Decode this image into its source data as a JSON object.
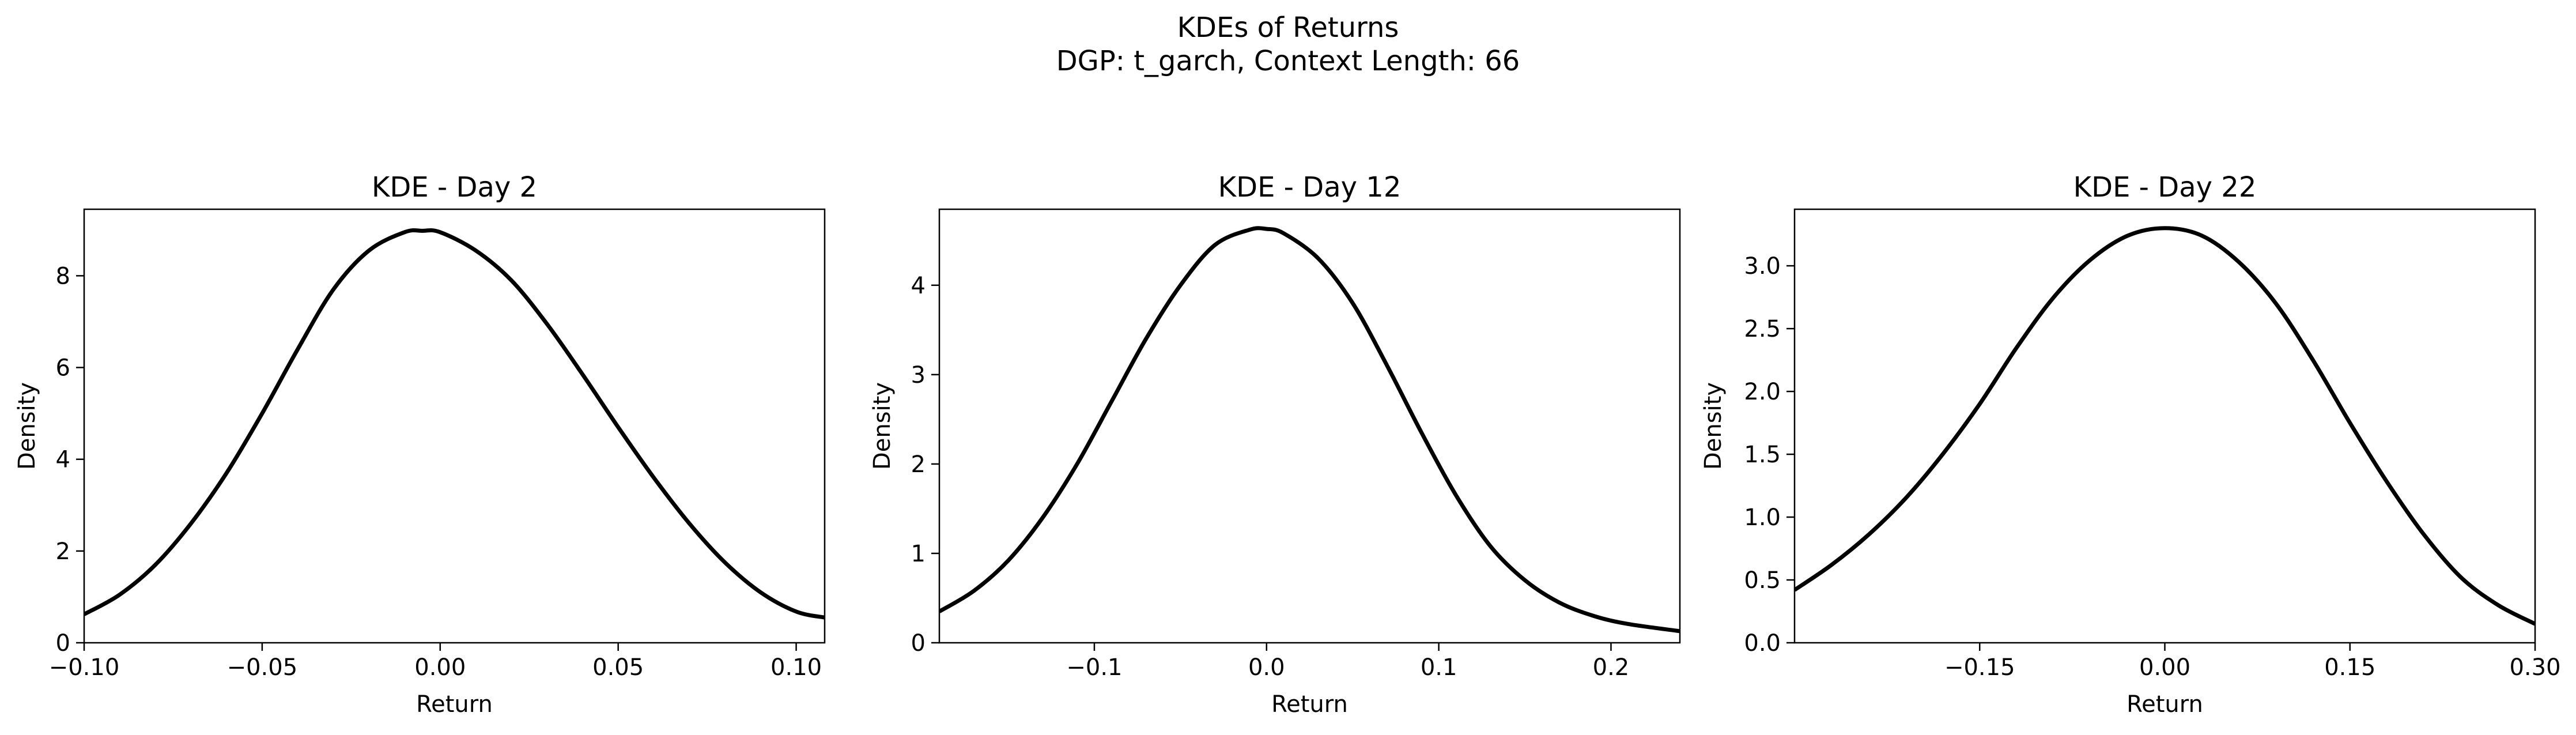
{
  "figure": {
    "title_line1": "KDEs of Returns",
    "title_line2": "DGP: t_garch, Context Length: 66"
  },
  "chart_data": [
    {
      "type": "line",
      "title": "KDE - Day 2",
      "xlabel": "Return",
      "ylabel": "Density",
      "xlim": [
        -0.1,
        0.108
      ],
      "ylim": [
        0,
        9.45
      ],
      "xticks": [
        -0.1,
        -0.05,
        0.0,
        0.05,
        0.1
      ],
      "xtick_labels": [
        "−0.10",
        "−0.05",
        "0.00",
        "0.05",
        "0.10"
      ],
      "yticks": [
        0,
        2,
        4,
        6,
        8
      ],
      "ytick_labels": [
        "0",
        "2",
        "4",
        "6",
        "8"
      ],
      "grid": false,
      "legend": "none",
      "series": [
        {
          "color": "#000000",
          "x": [
            -0.1,
            -0.09,
            -0.08,
            -0.07,
            -0.06,
            -0.05,
            -0.04,
            -0.03,
            -0.02,
            -0.01,
            -0.005,
            0.0,
            0.01,
            0.02,
            0.03,
            0.04,
            0.05,
            0.06,
            0.07,
            0.08,
            0.09,
            0.1,
            0.108
          ],
          "y": [
            0.62,
            1.05,
            1.7,
            2.6,
            3.7,
            5.0,
            6.4,
            7.7,
            8.55,
            8.95,
            8.98,
            8.95,
            8.55,
            7.9,
            6.95,
            5.85,
            4.7,
            3.6,
            2.6,
            1.75,
            1.1,
            0.68,
            0.55
          ]
        }
      ]
    },
    {
      "type": "line",
      "title": "KDE - Day 12",
      "xlabel": "Return",
      "ylabel": "Density",
      "xlim": [
        -0.19,
        0.24
      ],
      "ylim": [
        0,
        4.85
      ],
      "xticks": [
        -0.1,
        0.0,
        0.1,
        0.2
      ],
      "xtick_labels": [
        "−0.1",
        "0.0",
        "0.1",
        "0.2"
      ],
      "yticks": [
        0,
        1,
        2,
        3,
        4
      ],
      "ytick_labels": [
        "0",
        "1",
        "2",
        "3",
        "4"
      ],
      "grid": false,
      "legend": "none",
      "series": [
        {
          "color": "#000000",
          "x": [
            -0.19,
            -0.17,
            -0.15,
            -0.13,
            -0.11,
            -0.09,
            -0.07,
            -0.05,
            -0.03,
            -0.01,
            0.0,
            0.01,
            0.03,
            0.05,
            0.07,
            0.09,
            0.11,
            0.13,
            0.15,
            0.17,
            0.19,
            0.21,
            0.24
          ],
          "y": [
            0.35,
            0.58,
            0.92,
            1.4,
            2.0,
            2.7,
            3.4,
            4.0,
            4.45,
            4.62,
            4.63,
            4.58,
            4.3,
            3.8,
            3.1,
            2.35,
            1.65,
            1.08,
            0.7,
            0.45,
            0.3,
            0.21,
            0.13
          ]
        }
      ]
    },
    {
      "type": "line",
      "title": "KDE - Day 22",
      "xlabel": "Return",
      "ylabel": "Density",
      "xlim": [
        -0.3,
        0.3
      ],
      "ylim": [
        0,
        3.45
      ],
      "xticks": [
        -0.15,
        0.0,
        0.15,
        0.3
      ],
      "xtick_labels": [
        "−0.15",
        "0.00",
        "0.15",
        "0.30"
      ],
      "yticks": [
        0,
        0.5,
        1.0,
        1.5,
        2.0,
        2.5,
        3.0
      ],
      "ytick_labels": [
        "0.0",
        "0.5",
        "1.0",
        "1.5",
        "2.0",
        "2.5",
        "3.0"
      ],
      "grid": false,
      "legend": "none",
      "series": [
        {
          "color": "#000000",
          "x": [
            -0.3,
            -0.27,
            -0.24,
            -0.21,
            -0.18,
            -0.15,
            -0.12,
            -0.09,
            -0.06,
            -0.03,
            0.0,
            0.03,
            0.06,
            0.09,
            0.12,
            0.15,
            0.18,
            0.21,
            0.24,
            0.27,
            0.3
          ],
          "y": [
            0.42,
            0.62,
            0.86,
            1.15,
            1.5,
            1.9,
            2.35,
            2.75,
            3.05,
            3.24,
            3.3,
            3.24,
            3.03,
            2.7,
            2.25,
            1.75,
            1.28,
            0.86,
            0.52,
            0.3,
            0.15
          ]
        }
      ]
    }
  ]
}
